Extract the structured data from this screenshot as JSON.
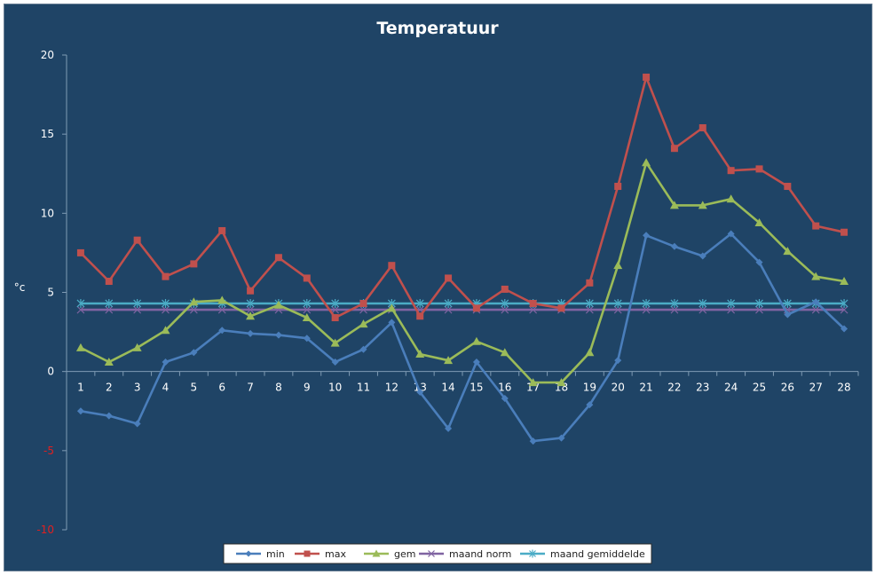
{
  "chart_data": {
    "type": "line",
    "title": "Temperatuur",
    "xlabel": "",
    "ylabel": "°c",
    "ylim": [
      -10,
      20
    ],
    "yticks": [
      20,
      15,
      10,
      5,
      0,
      -5,
      -10
    ],
    "categories": [
      "1",
      "2",
      "3",
      "4",
      "5",
      "6",
      "7",
      "8",
      "9",
      "10",
      "11",
      "12",
      "13",
      "14",
      "15",
      "16",
      "17",
      "18",
      "19",
      "20",
      "21",
      "22",
      "23",
      "24",
      "25",
      "26",
      "27",
      "28"
    ],
    "grid": false,
    "legend": "bottom",
    "series": [
      {
        "name": "min",
        "color": "#4a7ebb",
        "marker": "diamond",
        "values": [
          -2.5,
          -2.8,
          -3.3,
          0.6,
          1.2,
          2.6,
          2.4,
          2.3,
          2.1,
          0.6,
          1.4,
          3.1,
          -1.3,
          -3.6,
          0.6,
          -1.7,
          -4.4,
          -4.2,
          -2.1,
          0.7,
          8.6,
          7.9,
          7.3,
          8.7,
          6.9,
          3.6,
          4.4,
          2.7
        ]
      },
      {
        "name": "max",
        "color": "#c0504d",
        "marker": "square",
        "values": [
          7.5,
          5.7,
          8.3,
          6.0,
          6.8,
          8.9,
          5.1,
          7.2,
          5.9,
          3.4,
          4.3,
          6.7,
          3.5,
          5.9,
          4.0,
          5.2,
          4.3,
          4.0,
          5.6,
          11.7,
          18.6,
          14.1,
          15.4,
          12.7,
          12.8,
          11.7,
          9.2,
          8.8
        ]
      },
      {
        "name": "gem",
        "color": "#9bbb59",
        "marker": "triangle",
        "values": [
          1.5,
          0.6,
          1.5,
          2.6,
          4.4,
          4.5,
          3.5,
          4.2,
          3.4,
          1.8,
          3.0,
          4.0,
          1.1,
          0.7,
          1.9,
          1.2,
          -0.7,
          -0.7,
          1.2,
          6.7,
          13.2,
          10.5,
          10.5,
          10.9,
          9.4,
          7.6,
          6.0,
          5.7
        ]
      },
      {
        "name": "maand norm",
        "color": "#8064a2",
        "marker": "x",
        "values": [
          3.9,
          3.9,
          3.9,
          3.9,
          3.9,
          3.9,
          3.9,
          3.9,
          3.9,
          3.9,
          3.9,
          3.9,
          3.9,
          3.9,
          3.9,
          3.9,
          3.9,
          3.9,
          3.9,
          3.9,
          3.9,
          3.9,
          3.9,
          3.9,
          3.9,
          3.9,
          3.9,
          3.9
        ]
      },
      {
        "name": "maand gemiddelde",
        "color": "#4bacc6",
        "marker": "star",
        "values": [
          4.3,
          4.3,
          4.3,
          4.3,
          4.3,
          4.3,
          4.3,
          4.3,
          4.3,
          4.3,
          4.3,
          4.3,
          4.3,
          4.3,
          4.3,
          4.3,
          4.3,
          4.3,
          4.3,
          4.3,
          4.3,
          4.3,
          4.3,
          4.3,
          4.3,
          4.3,
          4.3,
          4.3
        ]
      }
    ]
  },
  "colors": {
    "background": "#1f4466",
    "axis": "#7f9bb4",
    "negative_tick": "#e02020",
    "legend_bg": "#ffffff"
  }
}
